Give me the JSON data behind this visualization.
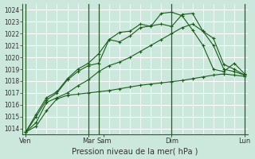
{
  "xlabel": "Pression niveau de la mer( hPa )",
  "bg_color": "#cce8dc",
  "grid_color": "#b8ddd0",
  "line_color": "#1a5c1a",
  "ylim": [
    1013.5,
    1024.5
  ],
  "yticks": [
    1014,
    1015,
    1016,
    1017,
    1018,
    1019,
    1020,
    1021,
    1022,
    1023,
    1024
  ],
  "day_labels": [
    "Ven",
    "Mar",
    "Sam",
    "Dim",
    "Lun"
  ],
  "day_positions": [
    0,
    6,
    7.5,
    14,
    21
  ],
  "vline_positions": [
    0,
    6,
    7,
    14,
    21
  ],
  "n_points": 22,
  "series": [
    [
      1013.7,
      1014.2,
      1015.5,
      1016.5,
      1016.8,
      1016.9,
      1017.0,
      1017.1,
      1017.2,
      1017.35,
      1017.5,
      1017.65,
      1017.75,
      1017.85,
      1017.95,
      1018.05,
      1018.2,
      1018.35,
      1018.5,
      1018.6,
      1018.5,
      1018.4
    ],
    [
      1013.7,
      1014.5,
      1016.2,
      1016.6,
      1017.0,
      1017.6,
      1018.1,
      1018.8,
      1019.3,
      1019.6,
      1020.0,
      1020.5,
      1021.0,
      1021.5,
      1022.0,
      1022.5,
      1022.8,
      1022.2,
      1021.6,
      1019.4,
      1019.0,
      1018.5
    ],
    [
      1013.7,
      1015.0,
      1016.4,
      1017.0,
      1018.1,
      1018.8,
      1019.3,
      1019.5,
      1021.5,
      1021.3,
      1021.8,
      1022.5,
      1022.65,
      1022.8,
      1022.6,
      1023.6,
      1023.7,
      1022.2,
      1021.0,
      1019.0,
      1018.8,
      1018.5
    ],
    [
      1013.7,
      1015.2,
      1016.6,
      1017.1,
      1018.2,
      1019.0,
      1019.5,
      1020.3,
      1021.5,
      1022.1,
      1022.2,
      1022.8,
      1022.6,
      1023.7,
      1023.8,
      1023.5,
      1022.3,
      1021.0,
      1019.0,
      1018.8,
      1019.5,
      1018.6
    ]
  ]
}
